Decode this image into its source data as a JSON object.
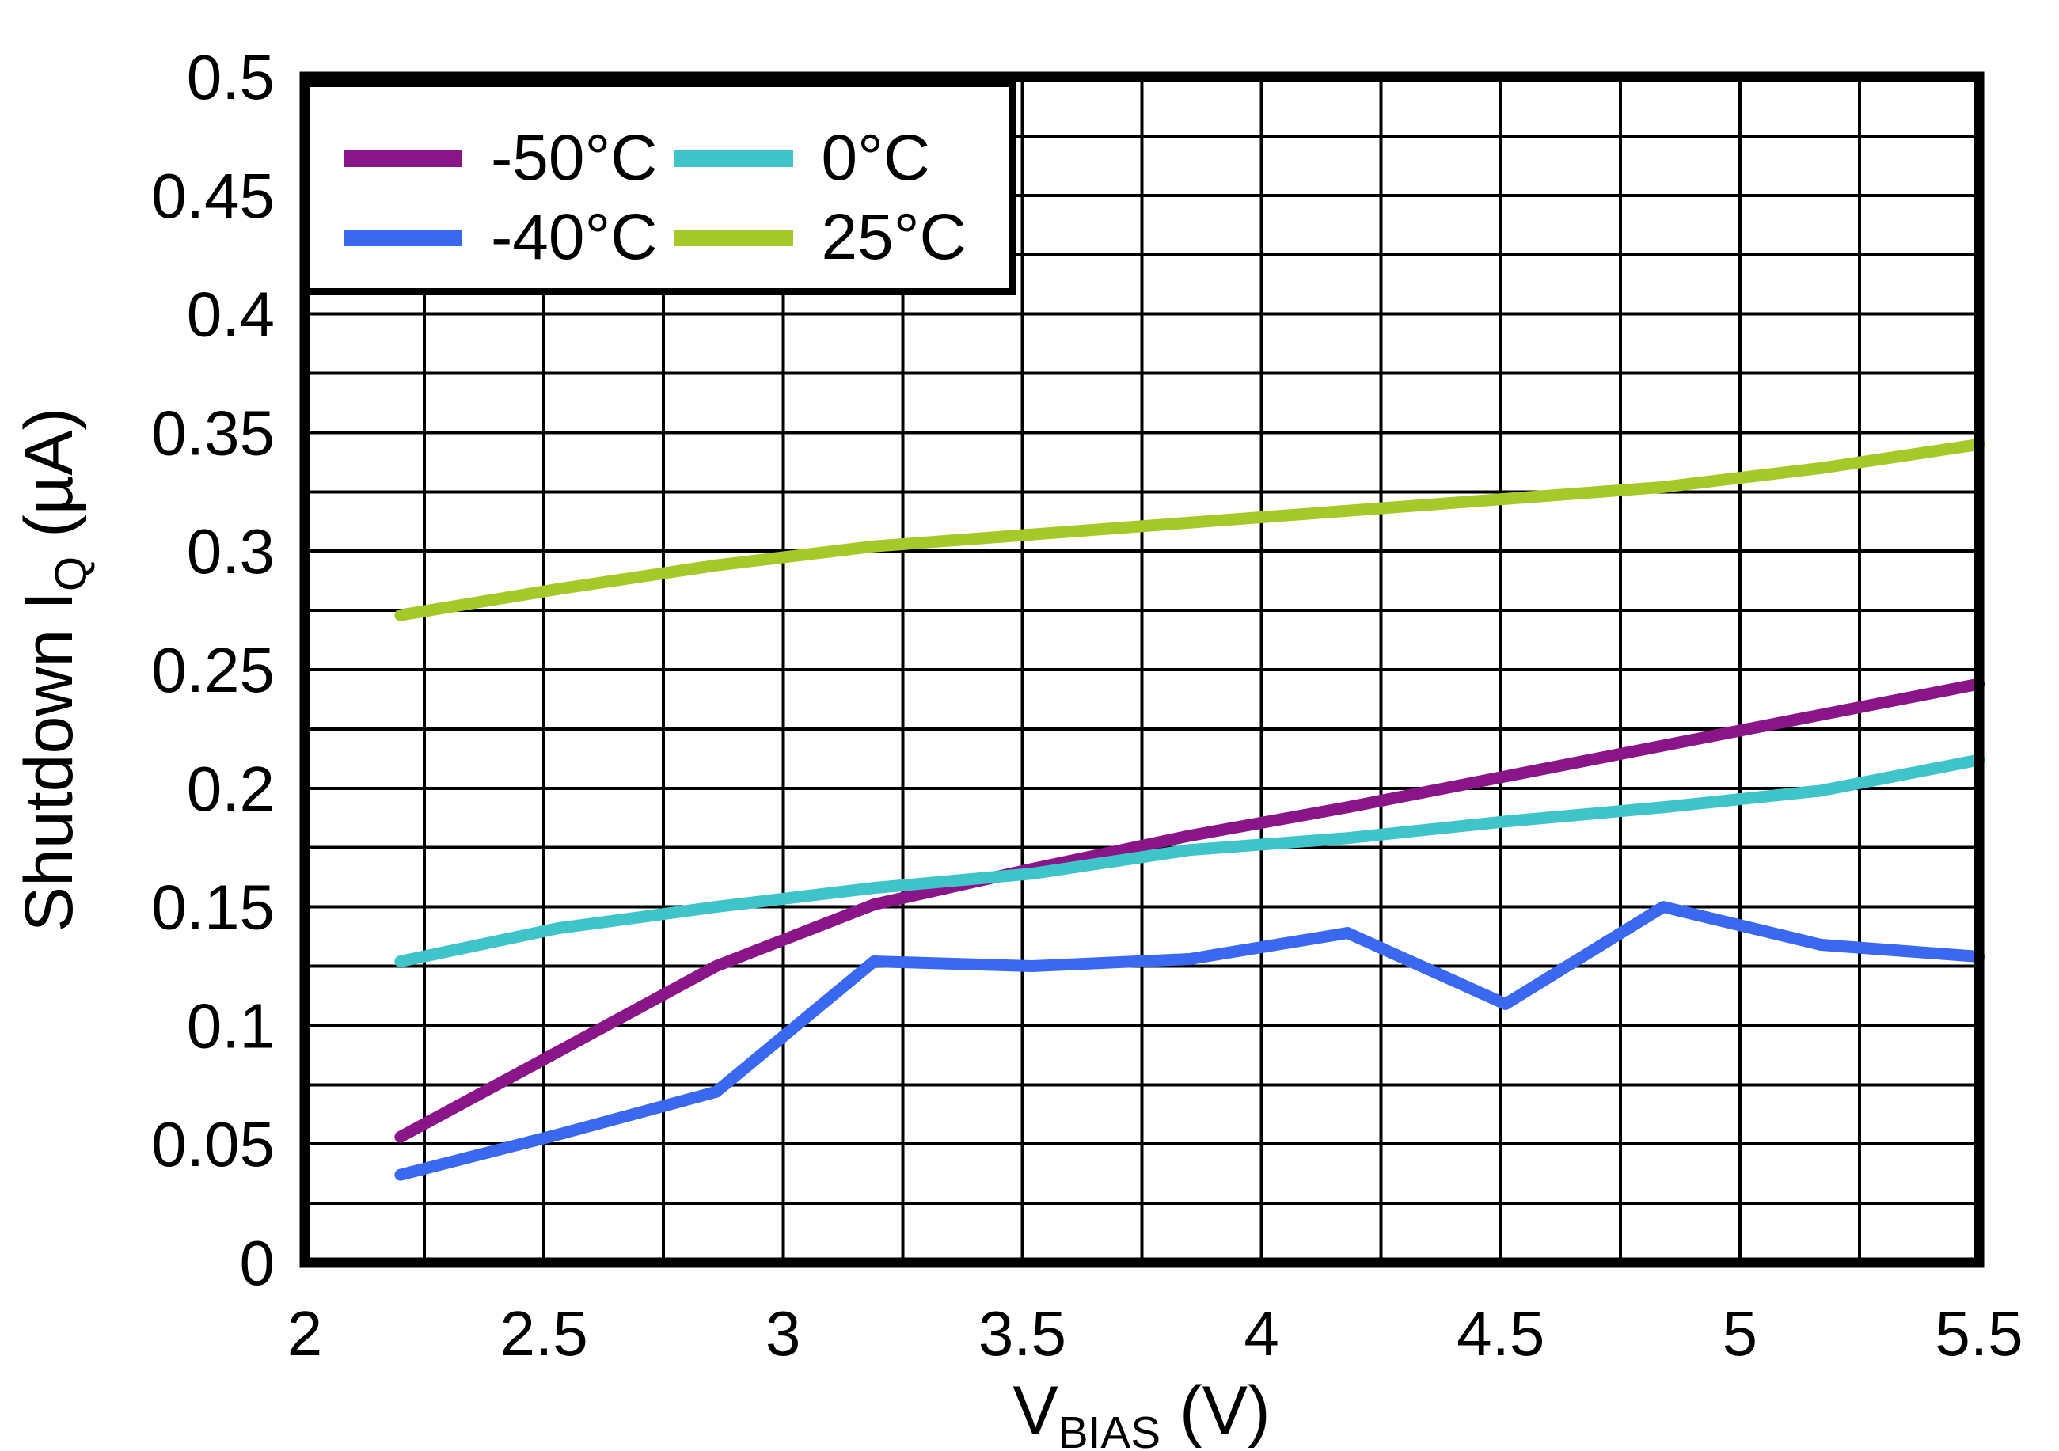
{
  "chart_data": {
    "type": "line",
    "title": "",
    "xlabel_parts": {
      "pre": "V",
      "sub": "BIAS",
      "rest": " (V)"
    },
    "ylabel_parts": {
      "pre": "Shutdown I",
      "sub": "Q",
      "rest": " (µA)"
    },
    "x_axis": {
      "min": 2,
      "max": 5.5,
      "grid_step": 0.25,
      "tick_values": [
        2,
        2.5,
        3,
        3.5,
        4,
        4.5,
        5,
        5.5
      ],
      "tick_labels": [
        "2",
        "2.5",
        "3",
        "3.5",
        "4",
        "4.5",
        "5",
        "5.5"
      ]
    },
    "y_axis": {
      "min": 0,
      "max": 0.5,
      "grid_step": 0.025,
      "tick_values": [
        0,
        0.05,
        0.1,
        0.15,
        0.2,
        0.25,
        0.3,
        0.35,
        0.4,
        0.45,
        0.5
      ],
      "tick_labels": [
        "0",
        "0.05",
        "0.1",
        "0.15",
        "0.2",
        "0.25",
        "0.3",
        "0.35",
        "0.4",
        "0.45",
        "0.5"
      ]
    },
    "x": [
      2.2,
      2.53,
      2.86,
      3.19,
      3.52,
      3.85,
      4.18,
      4.51,
      4.84,
      5.17,
      5.5
    ],
    "series": [
      {
        "name": "-50°C",
        "color": "#8A1589",
        "values": [
          0.053,
          0.089,
          0.125,
          0.151,
          0.166,
          0.18,
          0.192,
          0.205,
          0.218,
          0.231,
          0.244
        ]
      },
      {
        "name": "-40°C",
        "color": "#3B68F0",
        "values": [
          0.037,
          0.054,
          0.072,
          0.127,
          0.125,
          0.128,
          0.139,
          0.109,
          0.15,
          0.134,
          0.129
        ]
      },
      {
        "name": "0°C",
        "color": "#3FC4C9",
        "values": [
          0.127,
          0.141,
          0.15,
          0.158,
          0.164,
          0.174,
          0.179,
          0.186,
          0.192,
          0.199,
          0.212
        ]
      },
      {
        "name": "25°C",
        "color": "#A6C92A",
        "values": [
          0.273,
          0.284,
          0.294,
          0.302,
          0.307,
          0.312,
          0.317,
          0.322,
          0.327,
          0.335,
          0.345
        ]
      }
    ],
    "legend_position": "top-left",
    "grid": true
  },
  "colors": {
    "background": "#FFFFFF",
    "frame": "#000000",
    "gridline": "#000000",
    "tick_text": "#000000"
  }
}
